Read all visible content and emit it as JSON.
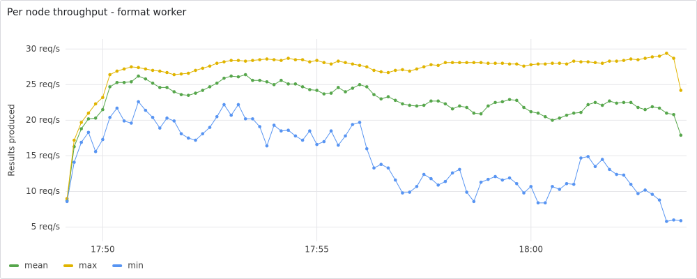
{
  "chart_data": {
    "type": "line",
    "title": "Per node throughput - format worker",
    "y_label": "Results produced",
    "x": [
      "17:49:10",
      "17:49:20",
      "17:49:30",
      "17:49:40",
      "17:49:50",
      "17:50:00",
      "17:50:10",
      "17:50:20",
      "17:50:30",
      "17:50:40",
      "17:50:50",
      "17:51:00",
      "17:51:10",
      "17:51:20",
      "17:51:30",
      "17:51:40",
      "17:51:50",
      "17:52:00",
      "17:52:10",
      "17:52:20",
      "17:52:30",
      "17:52:40",
      "17:52:50",
      "17:53:00",
      "17:53:10",
      "17:53:20",
      "17:53:30",
      "17:53:40",
      "17:53:50",
      "17:54:00",
      "17:54:10",
      "17:54:20",
      "17:54:30",
      "17:54:40",
      "17:54:50",
      "17:55:00",
      "17:55:10",
      "17:55:20",
      "17:55:30",
      "17:55:40",
      "17:55:50",
      "17:56:00",
      "17:56:10",
      "17:56:20",
      "17:56:30",
      "17:56:40",
      "17:56:50",
      "17:57:00",
      "17:57:10",
      "17:57:20",
      "17:57:30",
      "17:57:40",
      "17:57:50",
      "17:58:00",
      "17:58:10",
      "17:58:20",
      "17:58:30",
      "17:58:40",
      "17:58:50",
      "17:59:00",
      "17:59:10",
      "17:59:20",
      "17:59:30",
      "17:59:40",
      "17:59:50",
      "18:00:00",
      "18:00:10",
      "18:00:20",
      "18:00:30",
      "18:00:40",
      "18:00:50",
      "18:01:00",
      "18:01:10",
      "18:01:20",
      "18:01:30",
      "18:01:40",
      "18:01:50",
      "18:02:00",
      "18:02:10",
      "18:02:20",
      "18:02:30",
      "18:02:40",
      "18:02:50",
      "18:03:00",
      "18:03:10",
      "18:03:20",
      "18:03:30"
    ],
    "series": [
      {
        "name": "mean",
        "color": "#56a64b",
        "values": [
          8.7,
          16.3,
          18.8,
          20.2,
          20.3,
          21.5,
          24.7,
          25.3,
          25.3,
          25.4,
          26.2,
          25.8,
          25.2,
          24.6,
          24.6,
          24.0,
          23.6,
          23.5,
          23.8,
          24.2,
          24.7,
          25.2,
          25.9,
          26.2,
          26.1,
          26.4,
          25.6,
          25.6,
          25.4,
          25.0,
          25.6,
          25.1,
          25.1,
          24.7,
          24.3,
          24.2,
          23.7,
          23.8,
          24.6,
          24.0,
          24.5,
          25.0,
          24.7,
          23.6,
          23.0,
          23.3,
          22.8,
          22.3,
          22.1,
          22.0,
          22.1,
          22.7,
          22.7,
          22.3,
          21.6,
          22.0,
          21.8,
          21.0,
          20.9,
          22.0,
          22.5,
          22.6,
          22.9,
          22.8,
          21.8,
          21.2,
          21.0,
          20.5,
          20.0,
          20.3,
          20.7,
          21.0,
          21.1,
          22.2,
          22.5,
          22.1,
          22.7,
          22.4,
          22.5,
          22.5,
          21.8,
          21.5,
          21.9,
          21.7,
          21.0,
          20.8,
          17.9
        ]
      },
      {
        "name": "max",
        "color": "#e0b400",
        "values": [
          9.0,
          17.2,
          19.7,
          21.0,
          22.3,
          23.2,
          26.4,
          26.9,
          27.2,
          27.5,
          27.4,
          27.2,
          27.0,
          26.9,
          26.7,
          26.4,
          26.5,
          26.6,
          27.0,
          27.3,
          27.6,
          28.0,
          28.2,
          28.4,
          28.4,
          28.3,
          28.4,
          28.5,
          28.6,
          28.5,
          28.4,
          28.7,
          28.5,
          28.5,
          28.2,
          28.4,
          28.1,
          27.9,
          28.3,
          28.1,
          27.9,
          27.7,
          27.5,
          27.0,
          26.8,
          26.7,
          27.0,
          27.1,
          26.9,
          27.2,
          27.5,
          27.8,
          27.7,
          28.1,
          28.1,
          28.1,
          28.1,
          28.1,
          28.1,
          28.0,
          28.0,
          28.0,
          27.9,
          27.9,
          27.6,
          27.8,
          27.9,
          27.9,
          28.0,
          28.0,
          27.9,
          28.3,
          28.2,
          28.2,
          28.1,
          28.0,
          28.3,
          28.3,
          28.4,
          28.6,
          28.5,
          28.7,
          28.9,
          29.0,
          29.4,
          28.7,
          24.2
        ]
      },
      {
        "name": "min",
        "color": "#5794f2",
        "values": [
          8.6,
          14.1,
          16.9,
          18.3,
          15.6,
          17.3,
          20.4,
          21.7,
          19.9,
          19.6,
          22.6,
          21.4,
          20.4,
          18.9,
          20.3,
          19.9,
          18.1,
          17.5,
          17.2,
          18.1,
          19.0,
          20.5,
          22.2,
          20.7,
          22.2,
          20.2,
          20.2,
          19.1,
          16.4,
          19.3,
          18.5,
          18.6,
          17.8,
          17.2,
          18.5,
          16.6,
          17.0,
          18.5,
          16.5,
          17.8,
          19.4,
          19.7,
          16.0,
          13.3,
          13.8,
          13.3,
          11.6,
          9.8,
          9.9,
          10.7,
          12.4,
          11.8,
          10.9,
          11.4,
          12.6,
          13.1,
          9.9,
          8.6,
          11.3,
          11.7,
          12.1,
          11.6,
          11.9,
          11.1,
          9.8,
          10.7,
          8.4,
          8.4,
          10.7,
          10.3,
          11.1,
          11.0,
          14.7,
          14.9,
          13.5,
          14.5,
          13.1,
          12.4,
          12.3,
          11.0,
          9.7,
          10.2,
          9.6,
          8.8,
          5.8,
          6.0,
          5.9
        ]
      }
    ],
    "xlim": [
      "17:49:02",
      "18:03:38"
    ],
    "xticks": [
      "17:50",
      "17:55",
      "18:00"
    ],
    "ylim": [
      3,
      31.4
    ],
    "yticks": [
      {
        "value": 5,
        "label": "5 req/s"
      },
      {
        "value": 10,
        "label": "10 req/s"
      },
      {
        "value": 15,
        "label": "15 req/s"
      },
      {
        "value": 20,
        "label": "20 req/s"
      },
      {
        "value": 25,
        "label": "25 req/s"
      },
      {
        "value": 30,
        "label": "30 req/s"
      }
    ],
    "grid": true,
    "legend": "bottom-left"
  }
}
